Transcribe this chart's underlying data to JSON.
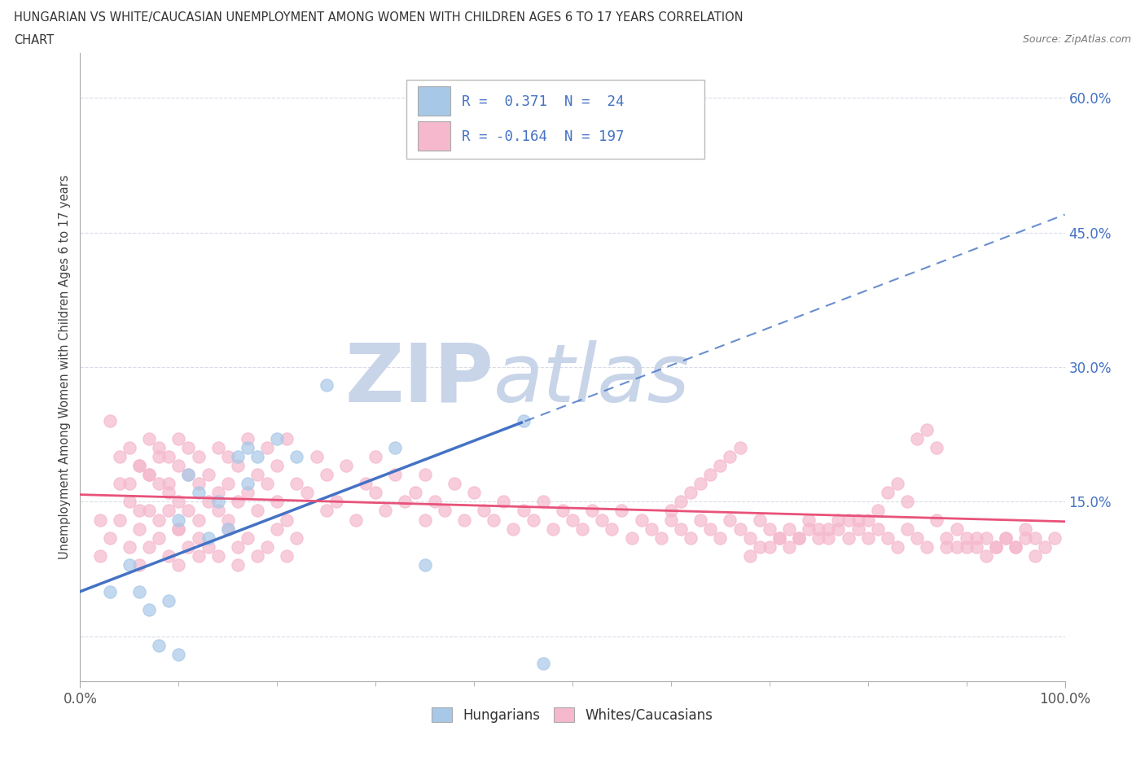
{
  "title_line1": "HUNGARIAN VS WHITE/CAUCASIAN UNEMPLOYMENT AMONG WOMEN WITH CHILDREN AGES 6 TO 17 YEARS CORRELATION",
  "title_line2": "CHART",
  "source_text": "Source: ZipAtlas.com",
  "ylabel": "Unemployment Among Women with Children Ages 6 to 17 years",
  "xlim": [
    0,
    100
  ],
  "ylim": [
    -5,
    65
  ],
  "yticks": [
    0,
    15,
    30,
    45,
    60
  ],
  "ytick_labels": [
    "",
    "15.0%",
    "30.0%",
    "45.0%",
    "60.0%"
  ],
  "xtick_labels": [
    "0.0%",
    "100.0%"
  ],
  "xticks": [
    0,
    100
  ],
  "hungarian_R": 0.371,
  "hungarian_N": 24,
  "caucasian_R": -0.164,
  "caucasian_N": 197,
  "hungarian_color": "#a8c8e8",
  "caucasian_color": "#f5b8cc",
  "hungarian_line_color": "#4472c4",
  "caucasian_line_color": "#e8527a",
  "ytick_color": "#4472c4",
  "xtick_color": "#555555",
  "legend_text_color": "#4472c4",
  "watermark_zip_color": "#c8d4e8",
  "watermark_atlas_color": "#c8d4e8",
  "background_color": "#ffffff",
  "grid_color": "#d8dce8",
  "hung_line_solid_end_x": 45,
  "hung_line_intercept": 5.0,
  "hung_line_slope": 0.42,
  "cauc_line_intercept": 15.8,
  "cauc_line_slope": -0.03,
  "hung_x": [
    3,
    5,
    6,
    7,
    8,
    9,
    10,
    11,
    12,
    13,
    14,
    15,
    16,
    17,
    17,
    18,
    20,
    22,
    25,
    32,
    35,
    45,
    47,
    10
  ],
  "hung_y": [
    5,
    8,
    5,
    3,
    -1,
    4,
    13,
    18,
    16,
    11,
    15,
    12,
    20,
    17,
    21,
    20,
    22,
    20,
    28,
    21,
    8,
    24,
    -3,
    -2
  ],
  "cauc_x_dense": [
    2,
    3,
    4,
    4,
    5,
    5,
    6,
    6,
    7,
    7,
    7,
    8,
    8,
    8,
    9,
    9,
    9,
    10,
    10,
    10,
    10,
    11,
    11,
    11,
    12,
    12,
    12,
    13,
    13,
    14,
    14,
    14,
    15,
    15,
    15,
    16,
    16,
    17,
    17,
    18,
    18,
    19,
    19,
    20,
    20,
    21,
    21,
    22,
    23,
    24,
    25,
    25,
    26,
    27,
    28,
    29,
    30,
    30,
    31,
    32,
    33,
    34,
    35,
    35,
    36,
    37,
    38,
    39,
    40,
    41,
    42,
    43,
    44,
    45,
    46,
    47,
    48,
    49,
    50,
    51,
    52,
    53,
    54,
    55,
    56,
    57,
    58,
    59,
    60,
    61,
    62,
    63,
    64,
    65,
    66,
    67,
    68,
    69,
    70,
    71,
    72,
    73,
    74,
    75,
    76,
    77,
    78,
    79,
    80,
    81,
    82,
    83,
    84,
    85,
    86,
    87,
    88,
    89,
    90,
    91,
    92,
    93,
    94,
    95,
    96,
    97,
    98,
    99
  ],
  "cauc_y_dense": [
    13,
    24,
    20,
    17,
    21,
    15,
    19,
    14,
    22,
    18,
    14,
    21,
    17,
    13,
    20,
    16,
    14,
    19,
    15,
    22,
    12,
    18,
    14,
    21,
    17,
    13,
    20,
    18,
    15,
    16,
    21,
    14,
    20,
    17,
    13,
    19,
    15,
    22,
    16,
    18,
    14,
    21,
    17,
    15,
    19,
    13,
    22,
    17,
    16,
    20,
    14,
    18,
    15,
    19,
    13,
    17,
    16,
    20,
    14,
    18,
    15,
    16,
    18,
    13,
    15,
    14,
    17,
    13,
    16,
    14,
    13,
    15,
    12,
    14,
    13,
    15,
    12,
    14,
    13,
    12,
    14,
    13,
    12,
    14,
    11,
    13,
    12,
    11,
    13,
    12,
    11,
    13,
    12,
    11,
    13,
    12,
    11,
    13,
    12,
    11,
    12,
    11,
    13,
    12,
    11,
    12,
    11,
    13,
    11,
    12,
    11,
    10,
    12,
    11,
    10,
    13,
    10,
    12,
    11,
    10,
    11,
    10,
    11,
    10,
    12,
    11,
    10,
    11
  ],
  "cauc_x_extra": [
    2,
    3,
    4,
    5,
    6,
    6,
    7,
    8,
    9,
    10,
    10,
    11,
    12,
    12,
    13,
    14,
    15,
    16,
    16,
    17,
    18,
    19,
    20,
    21,
    22,
    5,
    6,
    7,
    8,
    9,
    90,
    91,
    92,
    93,
    94,
    95,
    96,
    97,
    88,
    89,
    85,
    86,
    87,
    82,
    83,
    84,
    80,
    81,
    78,
    79,
    75,
    76,
    77,
    72,
    73,
    74,
    70,
    71,
    68,
    69,
    65,
    66,
    67,
    60,
    61,
    62,
    63,
    64
  ],
  "cauc_y_extra": [
    9,
    11,
    13,
    10,
    12,
    8,
    10,
    11,
    9,
    12,
    8,
    10,
    9,
    11,
    10,
    9,
    12,
    10,
    8,
    11,
    9,
    10,
    12,
    9,
    11,
    17,
    19,
    18,
    20,
    17,
    10,
    11,
    9,
    10,
    11,
    10,
    11,
    9,
    11,
    10,
    22,
    23,
    21,
    16,
    17,
    15,
    13,
    14,
    13,
    12,
    11,
    12,
    13,
    10,
    11,
    12,
    10,
    11,
    9,
    10,
    19,
    20,
    21,
    14,
    15,
    16,
    17,
    18
  ]
}
